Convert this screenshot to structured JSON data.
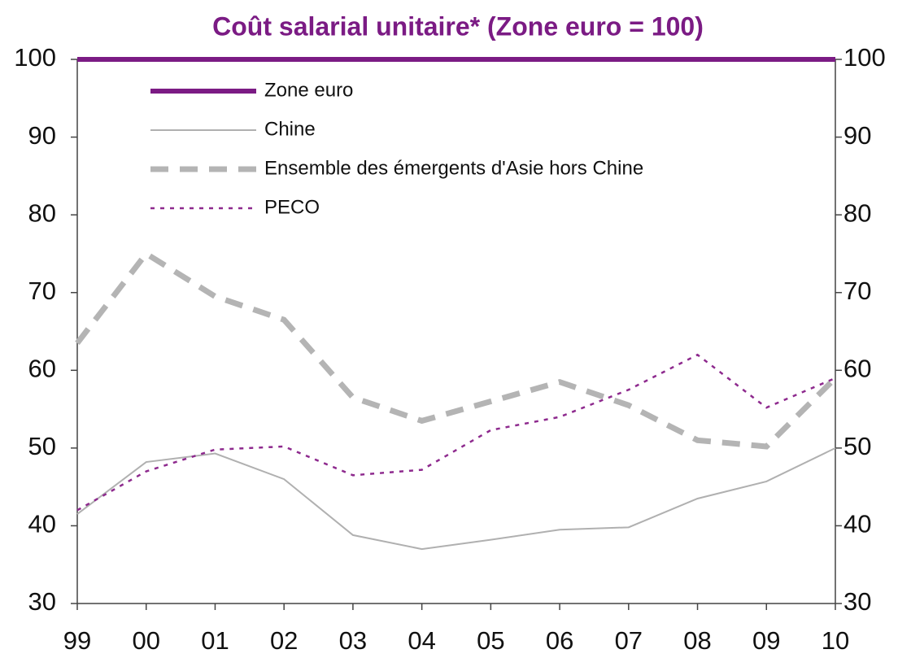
{
  "chart_data": {
    "type": "line",
    "title": "Coût salarial unitaire* (Zone euro = 100)",
    "categories": [
      "99",
      "00",
      "01",
      "02",
      "03",
      "04",
      "05",
      "06",
      "07",
      "08",
      "09",
      "10"
    ],
    "series": [
      {
        "name": "Zone euro",
        "color": "#7b1b84",
        "style": "thick",
        "values": [
          100,
          100,
          100,
          100,
          100,
          100,
          100,
          100,
          100,
          100,
          100,
          100
        ]
      },
      {
        "name": "Chine",
        "color": "#b0b0b0",
        "style": "solid",
        "values": [
          41.5,
          48.2,
          49.3,
          46,
          38.8,
          37,
          38.2,
          39.5,
          39.8,
          43.5,
          45.7,
          50
        ]
      },
      {
        "name": "Ensemble des émergents d'Asie hors Chine",
        "color": "#b4b4b4",
        "style": "dashed",
        "values": [
          63.5,
          75,
          69.5,
          66.5,
          56.5,
          53.5,
          56,
          58.5,
          55.5,
          51,
          50.2,
          59
        ]
      },
      {
        "name": "PECO",
        "color": "#8e2a8e",
        "style": "dotted",
        "values": [
          42,
          47,
          49.8,
          50.2,
          46.5,
          47.2,
          52.3,
          54,
          57.5,
          62,
          55.2,
          59
        ]
      }
    ],
    "ylim": [
      30,
      100
    ],
    "yticks": [
      30,
      40,
      50,
      60,
      70,
      80,
      90,
      100
    ],
    "y2lim": [
      30,
      100
    ],
    "y2ticks": [
      30,
      40,
      50,
      60,
      70,
      80,
      90,
      100
    ],
    "legend": "upper left"
  }
}
